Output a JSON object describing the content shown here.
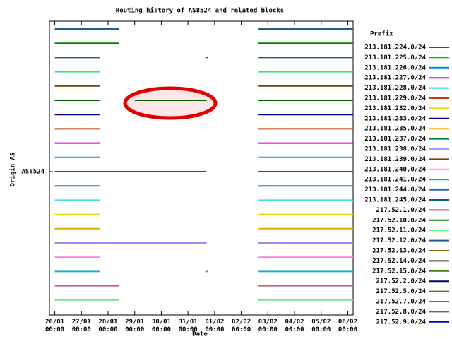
{
  "chart_data": {
    "type": "timeline",
    "title": "Routing history of AS8524 and related blocks",
    "y_label": "Origin AS",
    "x_label": "Date",
    "legend_title": "Prefix",
    "xlim": [
      -0.2,
      11.2
    ],
    "xticks": [
      {
        "value": 0,
        "label": "26/01\n00:00"
      },
      {
        "value": 1,
        "label": "27/01\n00:00"
      },
      {
        "value": 2,
        "label": "28/01\n00:00"
      },
      {
        "value": 3,
        "label": "29/01\n00:00"
      },
      {
        "value": 4,
        "label": "30/01\n00:00"
      },
      {
        "value": 5,
        "label": "31/01\n00:00"
      },
      {
        "value": 6,
        "label": "01/02\n00:00"
      },
      {
        "value": 7,
        "label": "02/02\n00:00"
      },
      {
        "value": 8,
        "label": "03/02\n00:00"
      },
      {
        "value": 9,
        "label": "04/02\n00:00"
      },
      {
        "value": 10,
        "label": "05/02\n00:00"
      },
      {
        "value": 11,
        "label": "06/02\n00:00"
      }
    ],
    "y_categories": [
      null,
      null,
      null,
      null,
      null,
      null,
      null,
      null,
      null,
      null,
      "AS8524",
      null,
      null,
      null,
      null,
      null,
      null,
      null,
      null,
      null
    ],
    "series": [
      {
        "color": "#1f5f8b",
        "segments": [
          [
            0,
            2.4
          ],
          [
            7.65,
            11.2
          ]
        ]
      },
      {
        "color": "#008000",
        "segments": [
          [
            0,
            2.4
          ],
          [
            7.65,
            11.2
          ]
        ]
      },
      {
        "color": "#1a6080",
        "segments": [
          [
            0,
            1.7
          ],
          [
            5.65,
            5.75
          ],
          [
            7.65,
            11.2
          ]
        ]
      },
      {
        "color": "#40e080",
        "segments": [
          [
            0,
            1.7
          ],
          [
            7.65,
            11.2
          ]
        ]
      },
      {
        "color": "#804000",
        "segments": [
          [
            0,
            1.7
          ],
          [
            7.65,
            11.2
          ]
        ]
      },
      {
        "color": "#006000",
        "segments": [
          [
            0,
            1.7
          ],
          [
            3.0,
            5.7
          ],
          [
            7.65,
            11.2
          ]
        ]
      },
      {
        "color": "#0000a0",
        "segments": [
          [
            0,
            1.7
          ],
          [
            7.65,
            11.2
          ]
        ]
      },
      {
        "color": "#c04000",
        "segments": [
          [
            0,
            1.7
          ],
          [
            7.65,
            11.2
          ]
        ]
      },
      {
        "color": "#c000c0",
        "segments": [
          [
            0,
            1.7
          ],
          [
            7.65,
            11.2
          ]
        ]
      },
      {
        "color": "#00b050",
        "segments": [
          [
            0,
            1.7
          ],
          [
            7.65,
            11.2
          ]
        ]
      },
      {
        "color": "#ff0000",
        "segments": [
          [
            0,
            5.7
          ],
          [
            7.65,
            11.2
          ]
        ]
      },
      {
        "color": "#1e7fd0",
        "segments": [
          [
            0,
            1.7
          ],
          [
            7.65,
            11.2
          ]
        ]
      },
      {
        "color": "#40e0e0",
        "segments": [
          [
            0,
            1.7
          ],
          [
            7.65,
            11.2
          ]
        ]
      },
      {
        "color": "#e0e000",
        "segments": [
          [
            0,
            1.7
          ],
          [
            7.65,
            11.2
          ]
        ]
      },
      {
        "color": "#e0b000",
        "segments": [
          [
            0,
            1.7
          ],
          [
            7.65,
            11.2
          ]
        ]
      },
      {
        "color": "#9090f0",
        "segments": [
          [
            0,
            5.7
          ],
          [
            7.65,
            11.2
          ]
        ]
      },
      {
        "color": "#f080f0",
        "segments": [
          [
            0,
            1.7
          ],
          [
            7.65,
            11.2
          ]
        ]
      },
      {
        "color": "#20b0c0",
        "segments": [
          [
            0,
            1.7
          ],
          [
            5.65,
            5.75
          ],
          [
            7.65,
            11.2
          ]
        ]
      },
      {
        "color": "#c06080",
        "segments": [
          [
            0,
            2.4
          ],
          [
            7.65,
            11.2
          ]
        ]
      },
      {
        "color": "#60f080",
        "segments": [
          [
            0,
            2.4
          ],
          [
            7.65,
            11.2
          ]
        ]
      }
    ],
    "legend": [
      {
        "name": "213.181.224.0/24",
        "color": "#ff0000"
      },
      {
        "name": "213.181.225.0/24",
        "color": "#00c000"
      },
      {
        "name": "213.181.226.0/24",
        "color": "#0080ff"
      },
      {
        "name": "213.181.227.0/24",
        "color": "#c000ff"
      },
      {
        "name": "213.181.228.0/24",
        "color": "#00e0e0"
      },
      {
        "name": "213.181.229.0/24",
        "color": "#c04000"
      },
      {
        "name": "213.181.232.0/24",
        "color": "#e0e000"
      },
      {
        "name": "213.181.233.0/24",
        "color": "#000080"
      },
      {
        "name": "213.181.235.0/24",
        "color": "#ffb000"
      },
      {
        "name": "213.181.237.0/24",
        "color": "#008040"
      },
      {
        "name": "213.181.238.0/24",
        "color": "#a0a0ff"
      },
      {
        "name": "213.181.239.0/24",
        "color": "#804000"
      },
      {
        "name": "213.181.240.0/24",
        "color": "#ff80ff"
      },
      {
        "name": "213.181.241.0/24",
        "color": "#00c060"
      },
      {
        "name": "213.181.244.0/24",
        "color": "#0060c0"
      },
      {
        "name": "213.181.245.0/24",
        "color": "#006080"
      },
      {
        "name": "217.52.1.0/24",
        "color": "#c04060"
      },
      {
        "name": "217.52.10.0/24",
        "color": "#008000"
      },
      {
        "name": "217.52.11.0/24",
        "color": "#60ff80"
      },
      {
        "name": "217.52.12.0/24",
        "color": "#206080"
      },
      {
        "name": "217.52.13.0/24",
        "color": "#806000"
      },
      {
        "name": "217.52.14.0/24",
        "color": "#404040"
      },
      {
        "name": "217.52.15.0/24",
        "color": "#408000"
      },
      {
        "name": "217.52.2.0/24",
        "color": "#000080"
      },
      {
        "name": "217.52.5.0/24",
        "color": "#806020"
      },
      {
        "name": "217.52.7.0/24",
        "color": "#806060"
      },
      {
        "name": "217.52.8.0/24",
        "color": "#805080"
      },
      {
        "name": "217.52.9.0/24",
        "color": "#0000c0"
      }
    ]
  }
}
